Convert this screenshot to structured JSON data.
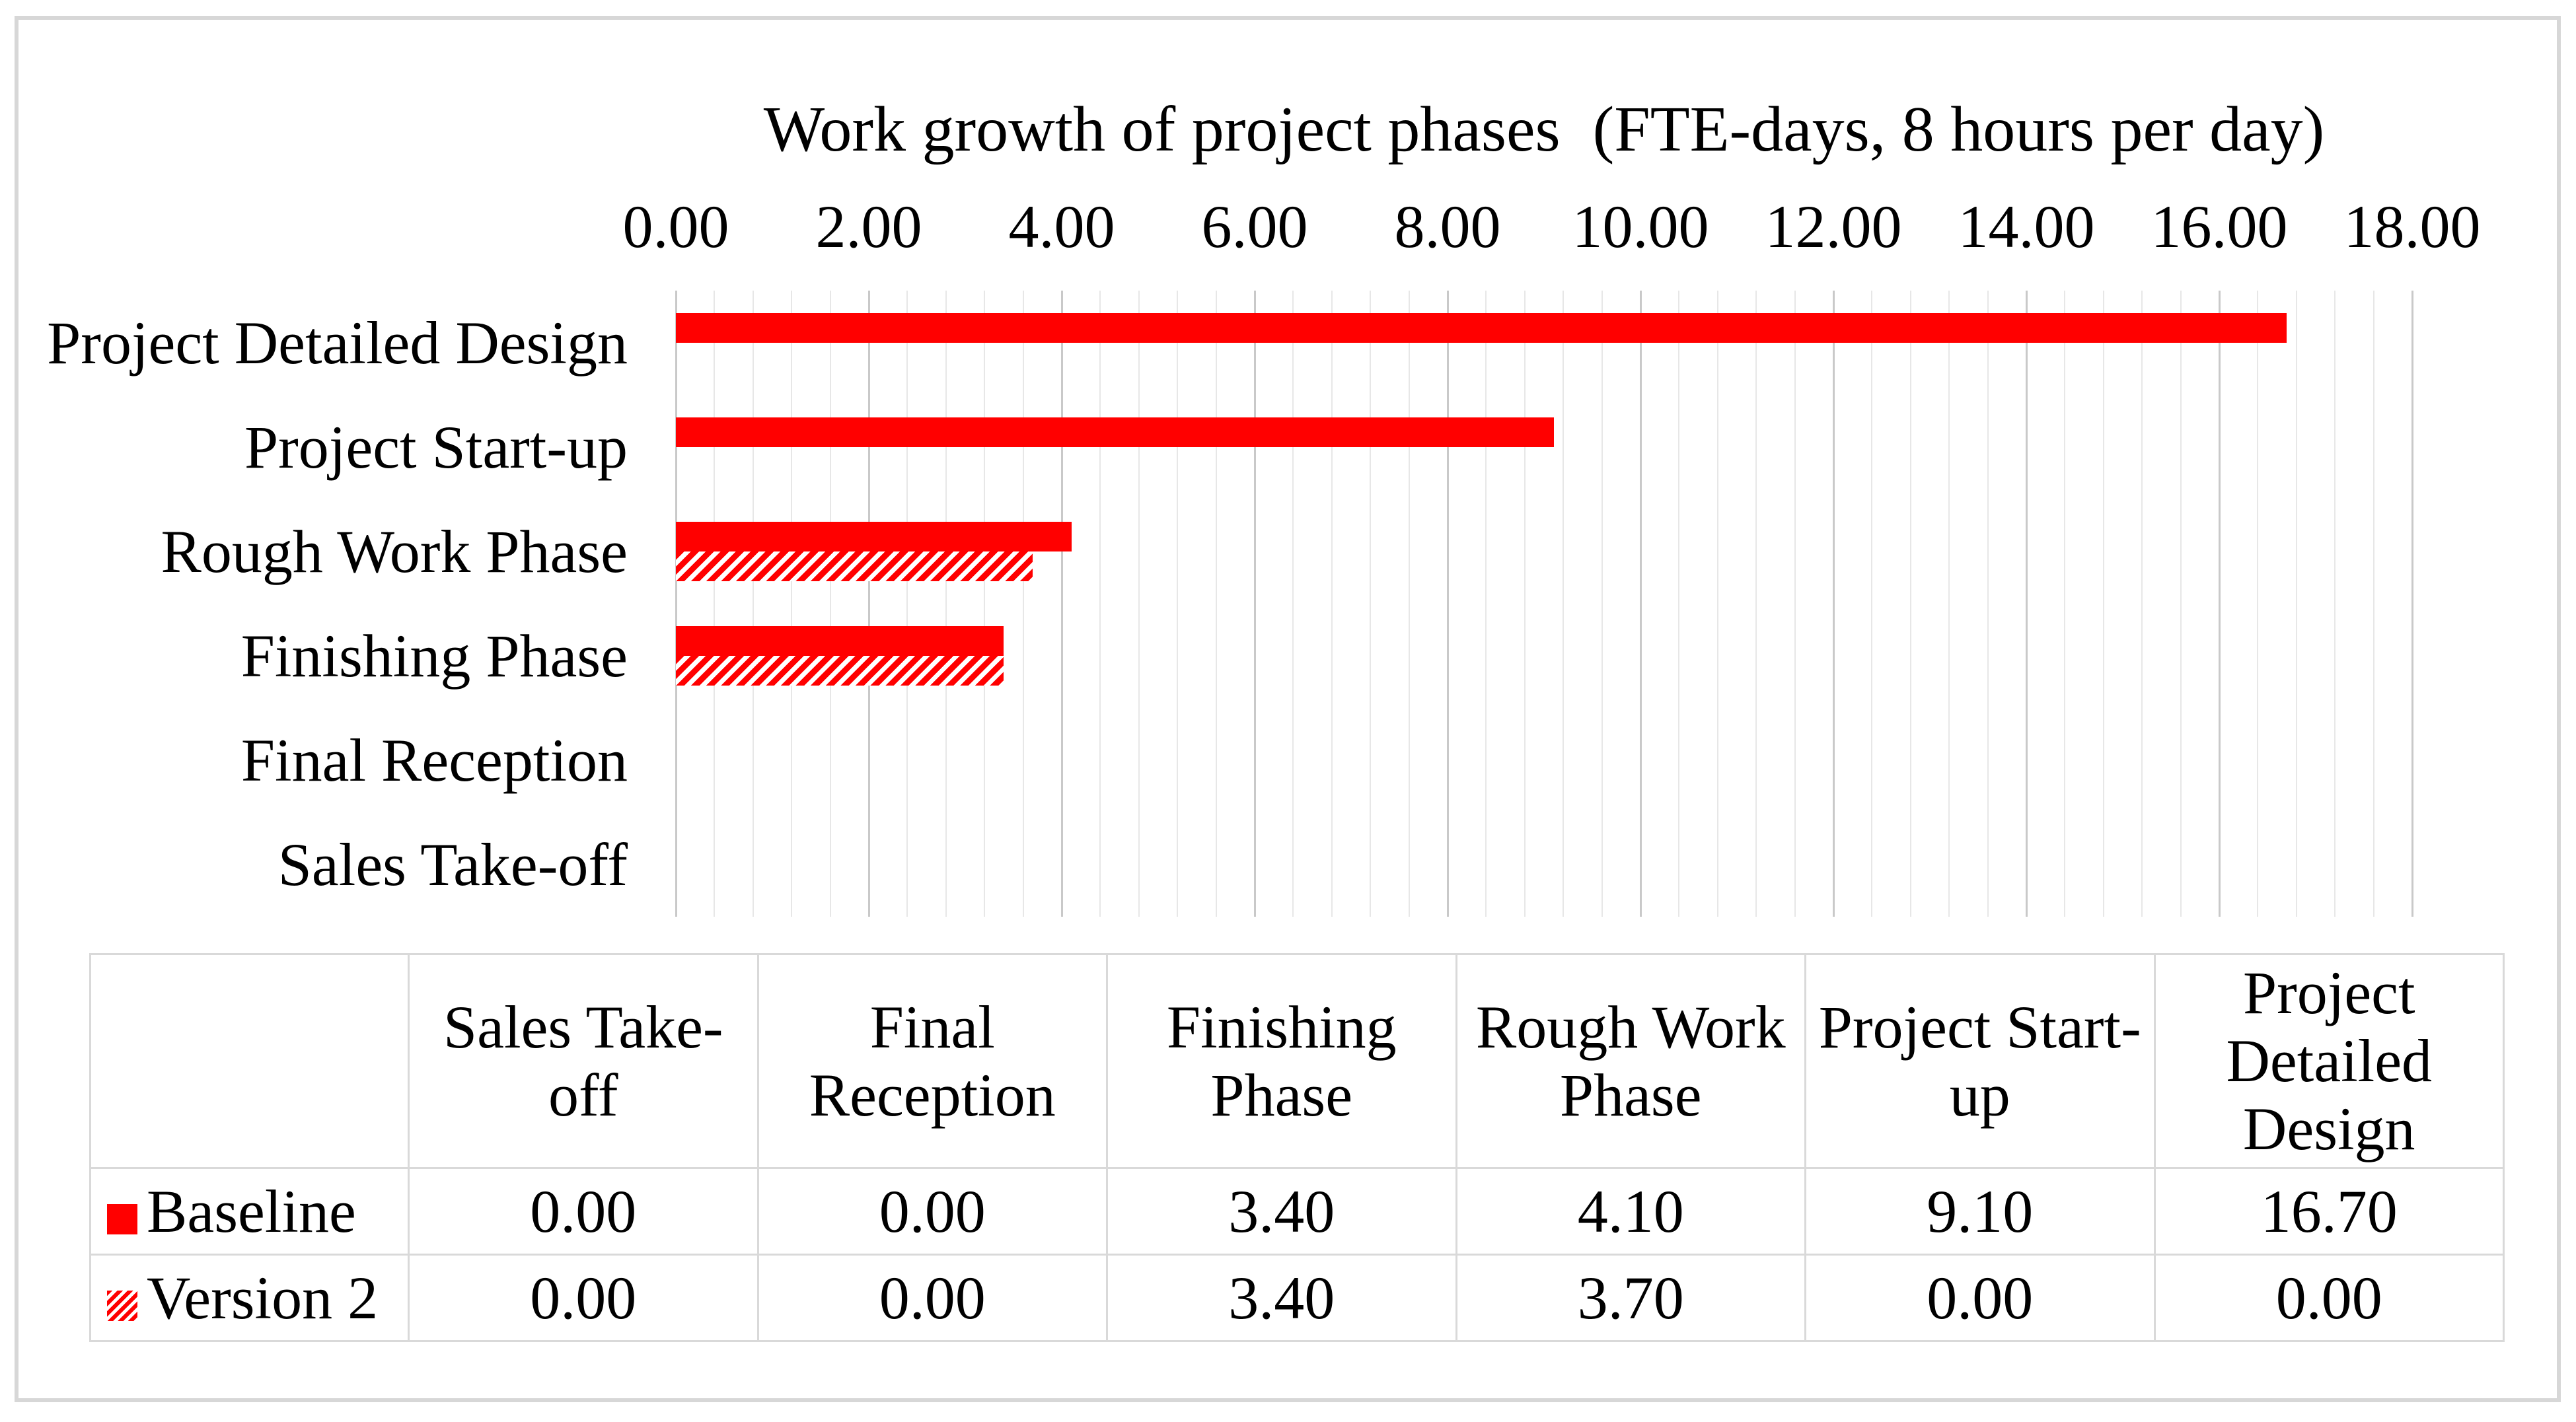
{
  "figure": {
    "background": "#ffffff",
    "frame_color": "#d7d7d7"
  },
  "chart_data": {
    "type": "bar",
    "orientation": "horizontal",
    "title": "Work growth of project phases  (FTE-days, 8 hours per day)",
    "categories_top_to_bottom": [
      "Project Detailed Design",
      "Project Start-up",
      "Rough Work Phase",
      "Finishing Phase",
      "Final Reception",
      "Sales Take-off"
    ],
    "series": [
      {
        "name": "Baseline",
        "style": "solid",
        "color": "#ff0000",
        "values": [
          16.7,
          9.1,
          4.1,
          3.4,
          0.0,
          0.0
        ]
      },
      {
        "name": "Version 2",
        "style": "diagonal-hatch",
        "color": "#ff0000",
        "values": [
          0.0,
          0.0,
          3.7,
          3.4,
          0.0,
          0.0
        ]
      }
    ],
    "x_axis": {
      "min": 0,
      "max": 18,
      "major_unit": 2,
      "minor_unit": 0.4,
      "tick_labels": [
        "0.00",
        "2.00",
        "4.00",
        "6.00",
        "8.00",
        "10.00",
        "12.00",
        "14.00",
        "16.00",
        "18.00"
      ]
    },
    "gridlines": {
      "minor_color": "#e7e7e7",
      "major_color": "#c9c9c9"
    },
    "legend_position": "table-left-keys"
  },
  "table": {
    "columns": [
      "Sales Take-off",
      "Final Reception",
      "Finishing Phase",
      "Rough Work Phase",
      "Project Start-up",
      "Project Detailed Design"
    ],
    "rows": [
      {
        "label": "Baseline",
        "key": "solid",
        "values": [
          "0.00",
          "0.00",
          "3.40",
          "4.10",
          "9.10",
          "16.70"
        ]
      },
      {
        "label": "Version 2",
        "key": "hatch",
        "values": [
          "0.00",
          "0.00",
          "3.40",
          "3.70",
          "0.00",
          "0.00"
        ]
      }
    ]
  }
}
